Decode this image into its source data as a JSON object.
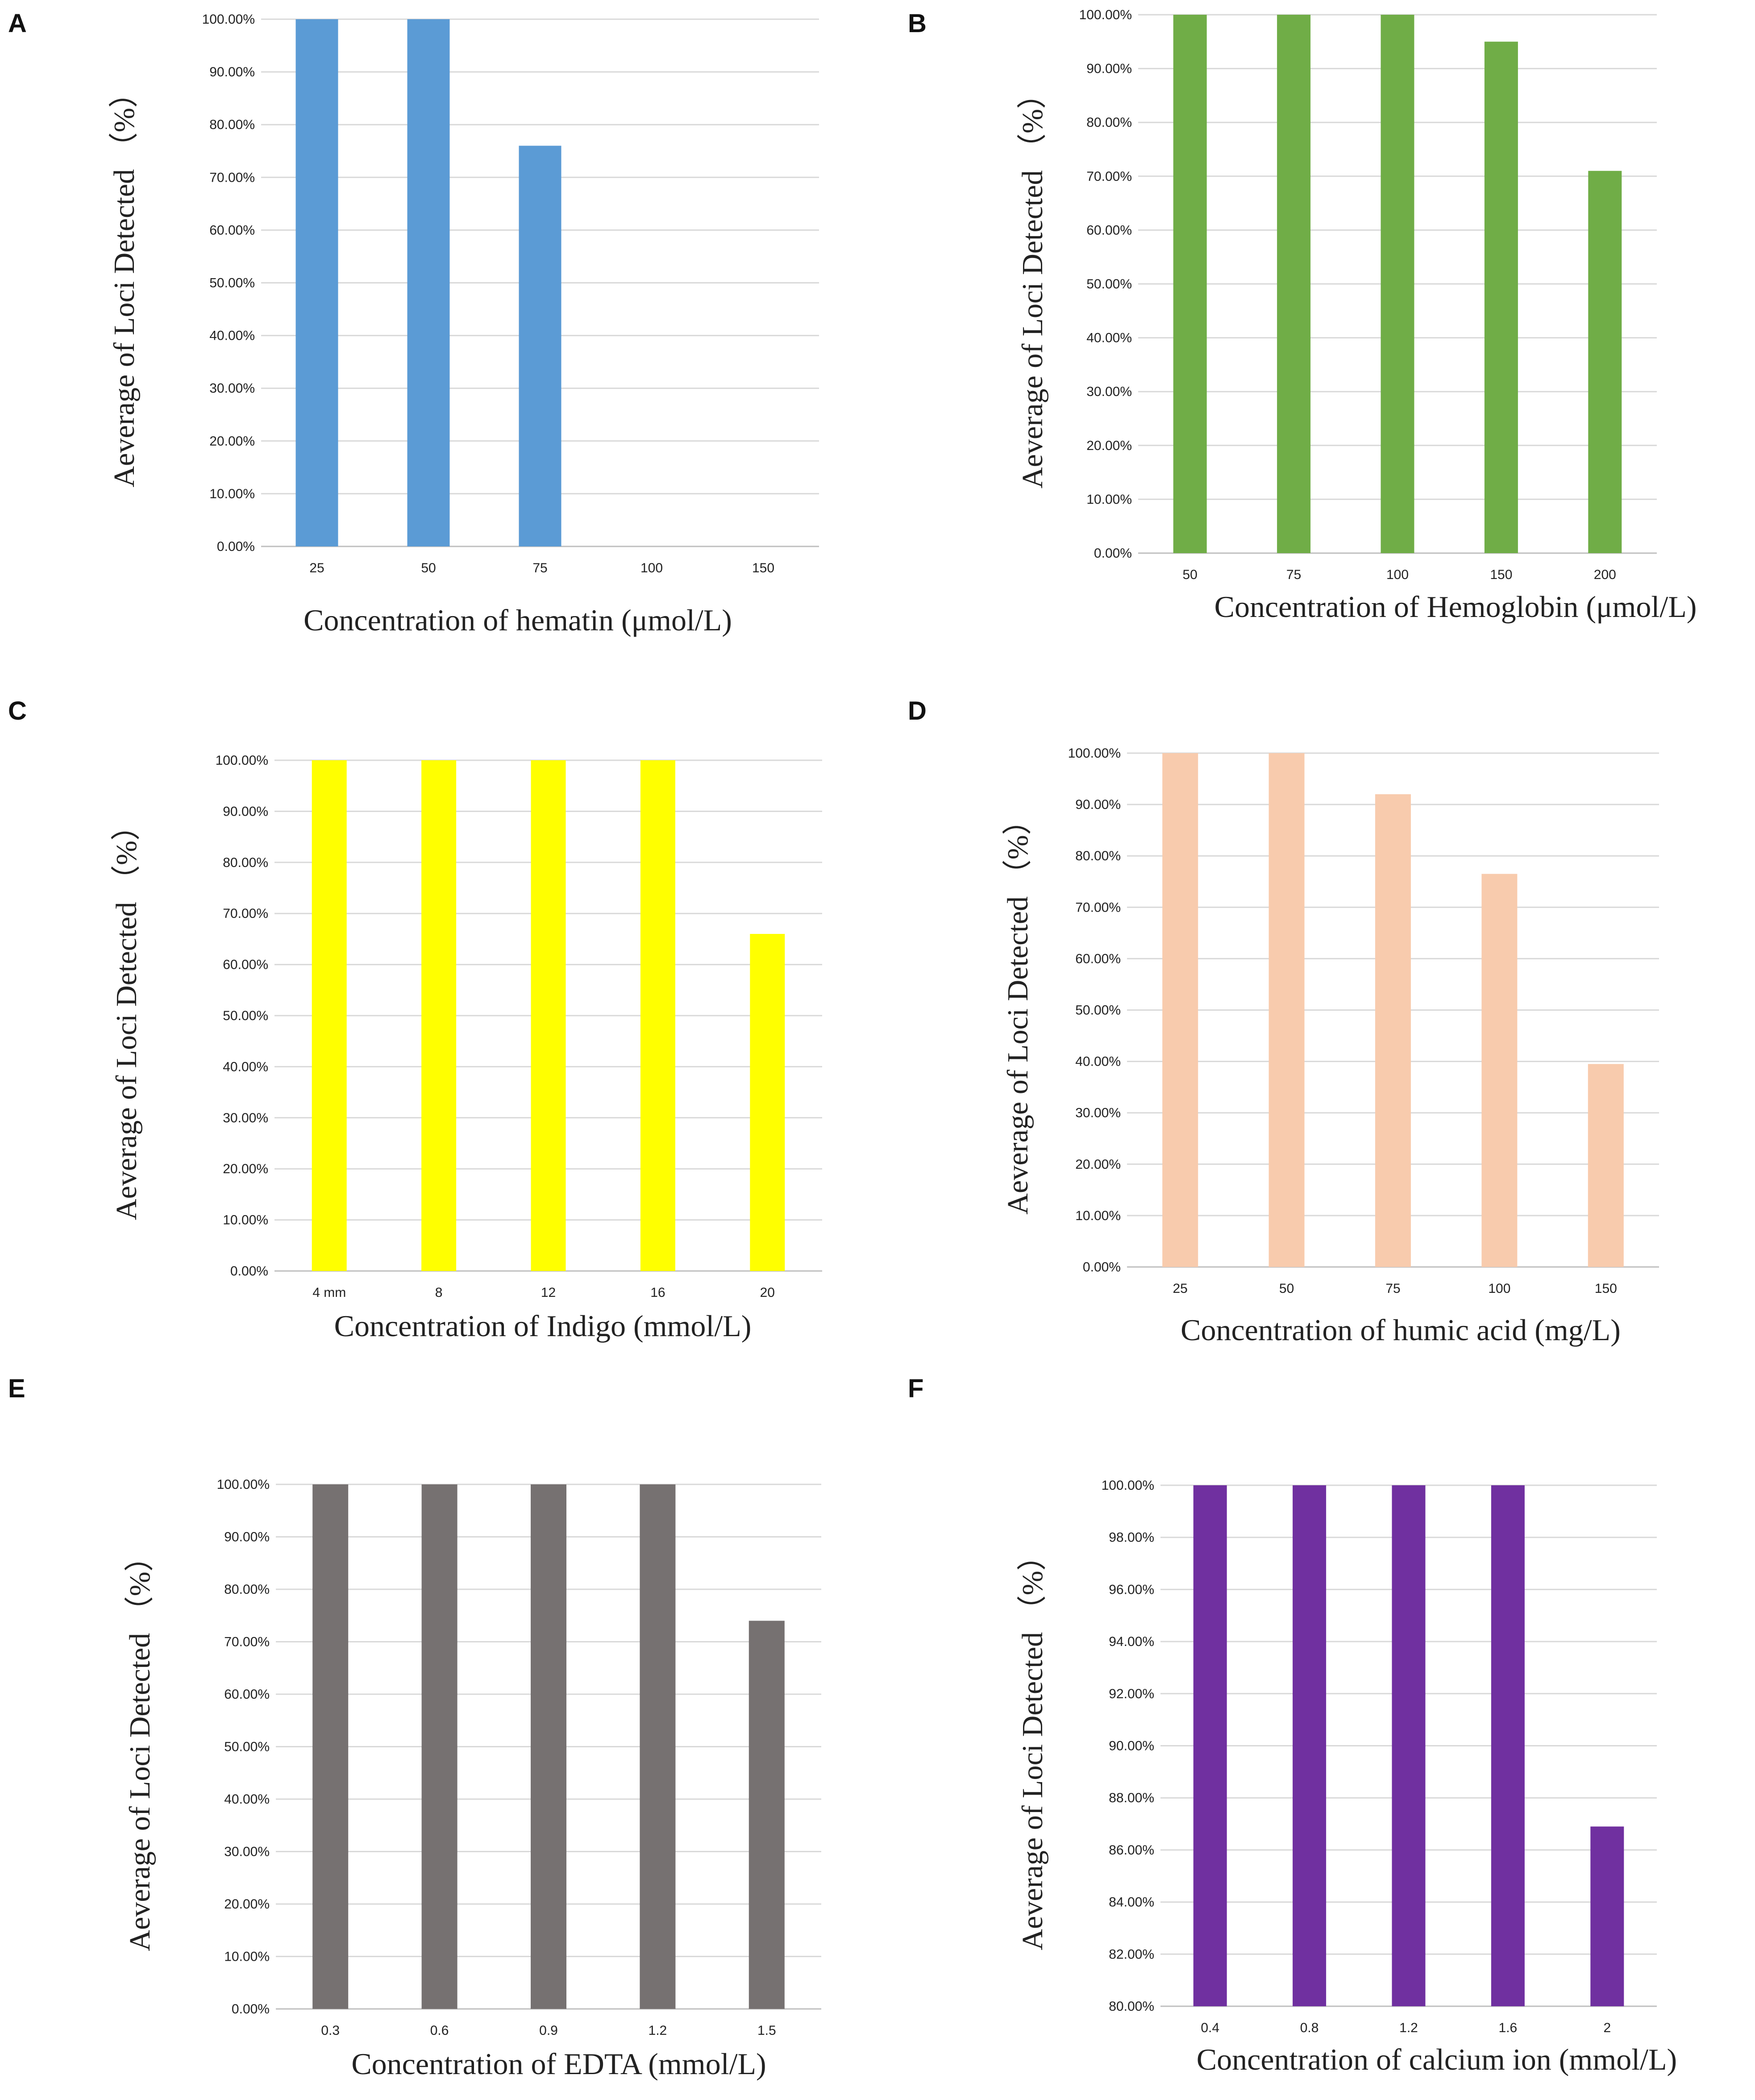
{
  "chart_data": [
    {
      "panel": "A",
      "type": "bar",
      "categories": [
        "25",
        "50",
        "75",
        "100",
        "150"
      ],
      "values": [
        100,
        100,
        76,
        0,
        0
      ],
      "yticks": [
        "0.00%",
        "10.00%",
        "20.00%",
        "30.00%",
        "40.00%",
        "50.00%",
        "60.00%",
        "70.00%",
        "80.00%",
        "90.00%",
        "100.00%"
      ],
      "ylim": [
        0,
        100
      ],
      "ylabel": "Aeverage of Loci Detected （%）",
      "xlabel": "Concentration of hematin (μmol/L)",
      "color": "#5b9bd5"
    },
    {
      "panel": "B",
      "type": "bar",
      "categories": [
        "50",
        "75",
        "100",
        "150",
        "200"
      ],
      "values": [
        100,
        100,
        100,
        95,
        71
      ],
      "yticks": [
        "0.00%",
        "10.00%",
        "20.00%",
        "30.00%",
        "40.00%",
        "50.00%",
        "60.00%",
        "70.00%",
        "80.00%",
        "90.00%",
        "100.00%"
      ],
      "ylim": [
        0,
        100
      ],
      "ylabel": "Aeverage of Loci Detected （%）",
      "xlabel": "Concentration of Hemoglobin (μmol/L)",
      "color": "#70ad47"
    },
    {
      "panel": "C",
      "type": "bar",
      "categories": [
        "4 mm",
        "8",
        "12",
        "16",
        "20"
      ],
      "values": [
        100,
        100,
        100,
        100,
        66
      ],
      "yticks": [
        "0.00%",
        "10.00%",
        "20.00%",
        "30.00%",
        "40.00%",
        "50.00%",
        "60.00%",
        "70.00%",
        "80.00%",
        "90.00%",
        "100.00%"
      ],
      "ylim": [
        0,
        100
      ],
      "ylabel": "Aeverage of Loci Detected （%）",
      "xlabel": "Concentration of Indigo (mmol/L)",
      "color": "#ffff00"
    },
    {
      "panel": "D",
      "type": "bar",
      "categories": [
        "25",
        "50",
        "75",
        "100",
        "150"
      ],
      "values": [
        100,
        100,
        92,
        76.5,
        39.5
      ],
      "yticks": [
        "0.00%",
        "10.00%",
        "20.00%",
        "30.00%",
        "40.00%",
        "50.00%",
        "60.00%",
        "70.00%",
        "80.00%",
        "90.00%",
        "100.00%"
      ],
      "ylim": [
        0,
        100
      ],
      "ylabel": "Aeverage of Loci Detected （%）",
      "xlabel": "Concentration of humic acid (mg/L)",
      "color": "#f8cbad"
    },
    {
      "panel": "E",
      "type": "bar",
      "categories": [
        "0.3",
        "0.6",
        "0.9",
        "1.2",
        "1.5"
      ],
      "values": [
        100,
        100,
        100,
        100,
        74
      ],
      "yticks": [
        "0.00%",
        "10.00%",
        "20.00%",
        "30.00%",
        "40.00%",
        "50.00%",
        "60.00%",
        "70.00%",
        "80.00%",
        "90.00%",
        "100.00%"
      ],
      "ylim": [
        0,
        100
      ],
      "ylabel": "Aeverage of Loci Detected （%）",
      "xlabel": "Concentration of EDTA (mmol/L)",
      "color": "#767171"
    },
    {
      "panel": "F",
      "type": "bar",
      "categories": [
        "0.4",
        "0.8",
        "1.2",
        "1.6",
        "2"
      ],
      "values": [
        100,
        100,
        100,
        100,
        86.9
      ],
      "yticks": [
        "80.00%",
        "82.00%",
        "84.00%",
        "86.00%",
        "88.00%",
        "90.00%",
        "92.00%",
        "94.00%",
        "96.00%",
        "98.00%",
        "100.00%"
      ],
      "ylim": [
        80,
        100
      ],
      "ylabel": "Aeverage of Loci Detected （%）",
      "xlabel": "Concentration of calcium ion (mmol/L)",
      "color": "#7030a0"
    }
  ]
}
